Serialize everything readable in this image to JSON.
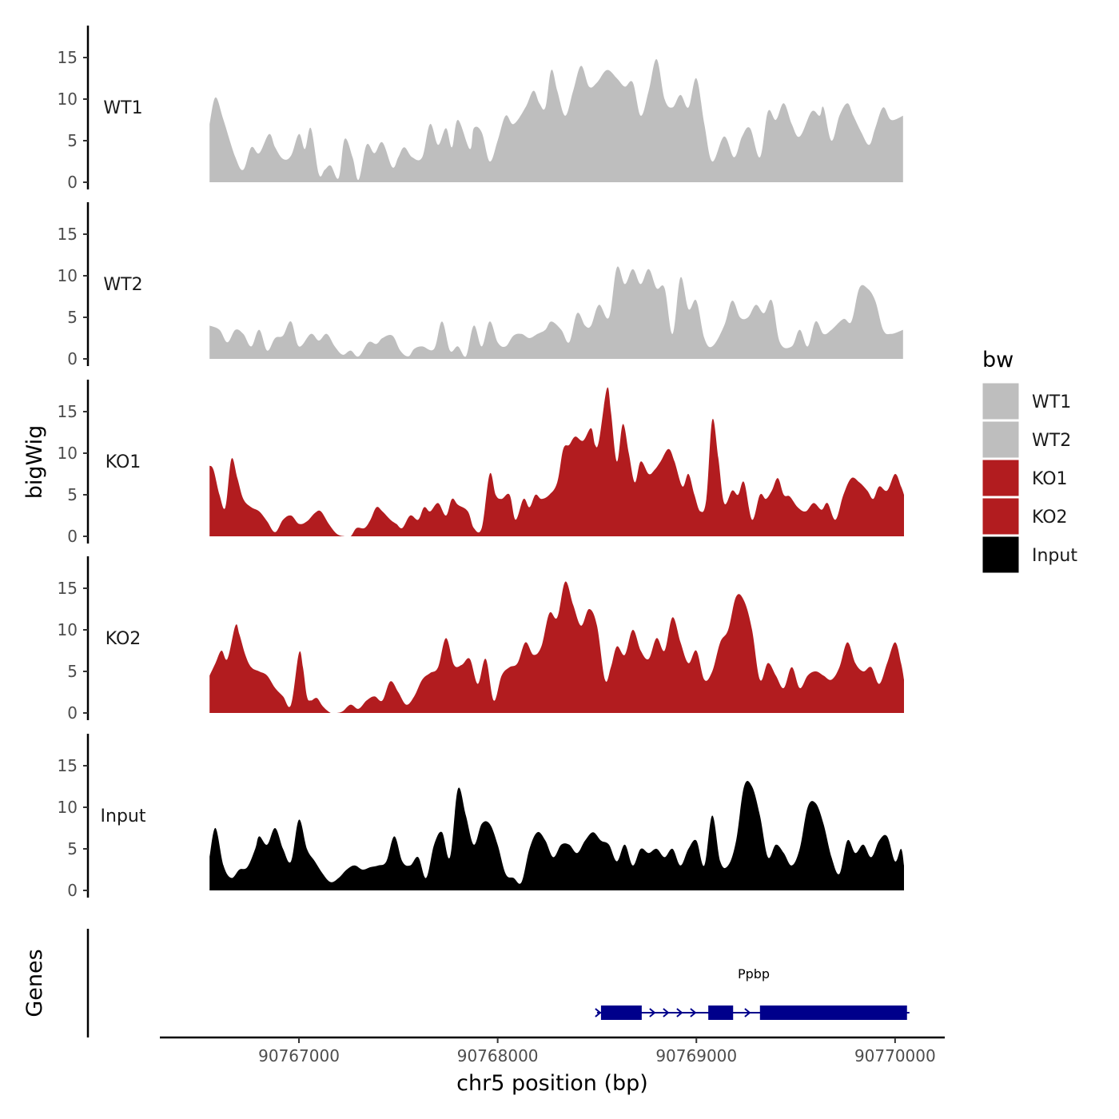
{
  "chart_data": {
    "type": "area",
    "title": "",
    "ylabel": "bigWig",
    "genes_label": "Genes",
    "xlabel": "chr5 position (bp)",
    "xlim": [
      90766300,
      90770250
    ],
    "ylim": [
      0,
      18
    ],
    "yticks": [
      "0",
      "5",
      "10",
      "15"
    ],
    "xticks": [
      {
        "value": 90767000,
        "label": "90767000"
      },
      {
        "value": 90768000,
        "label": "90768000"
      },
      {
        "value": 90769000,
        "label": "90769000"
      },
      {
        "value": 90770000,
        "label": "90770000"
      }
    ],
    "grid": false,
    "legend": {
      "title": "bw",
      "position": "right"
    },
    "series": [
      {
        "name": "WT1",
        "color": "#BEBEBE",
        "x": [
          90766550,
          90766580,
          90766620,
          90766680,
          90766720,
          90766760,
          90766800,
          90766850,
          90766880,
          90766920,
          90766960,
          90767000,
          90767030,
          90767060,
          90767100,
          90767130,
          90767160,
          90767200,
          90767230,
          90767270,
          90767300,
          90767340,
          90767380,
          90767420,
          90767470,
          90767500,
          90767530,
          90767570,
          90767620,
          90767660,
          90767700,
          90767740,
          90767770,
          90767800,
          90767860,
          90767880,
          90767920,
          90767960,
          90768000,
          90768040,
          90768080,
          90768140,
          90768180,
          90768210,
          90768240,
          90768270,
          90768300,
          90768340,
          90768380,
          90768420,
          90768460,
          90768500,
          90768550,
          90768600,
          90768640,
          90768680,
          90768720,
          90768760,
          90768800,
          90768840,
          90768880,
          90768920,
          90768960,
          90769000,
          90769040,
          90769080,
          90769140,
          90769190,
          90769230,
          90769270,
          90769320,
          90769360,
          90769400,
          90769440,
          90769480,
          90769520,
          90769580,
          90769620,
          90769640,
          90769680,
          90769720,
          90769760,
          90769790,
          90769830,
          90769870,
          90769900,
          90769940,
          90769980,
          90770040
        ],
        "values": [
          7.0,
          10.2,
          7.5,
          3.0,
          1.5,
          4.2,
          3.5,
          5.8,
          4.2,
          2.8,
          3.2,
          5.8,
          4.0,
          6.5,
          1.0,
          1.5,
          2.0,
          0.5,
          5.2,
          3.0,
          0.3,
          4.5,
          3.5,
          4.8,
          1.8,
          3.0,
          4.2,
          3.0,
          3.0,
          7.0,
          4.5,
          6.5,
          4.2,
          7.5,
          4.0,
          6.5,
          6.0,
          2.5,
          5.0,
          8.0,
          7.0,
          9.0,
          11.0,
          9.5,
          9.0,
          13.5,
          11.0,
          8.0,
          11.0,
          14.0,
          11.5,
          12.0,
          13.5,
          12.5,
          11.5,
          12.0,
          8.0,
          11.0,
          14.8,
          10.0,
          9.0,
          10.5,
          9.0,
          12.5,
          7.0,
          2.5,
          5.5,
          3.0,
          5.5,
          6.5,
          3.0,
          8.5,
          7.5,
          9.5,
          7.0,
          5.5,
          8.5,
          8.0,
          9.0,
          5.0,
          8.0,
          9.5,
          8.0,
          6.0,
          4.5,
          6.5,
          9.0,
          7.5,
          8.0
        ]
      },
      {
        "name": "WT2",
        "color": "#BEBEBE",
        "x": [
          90766550,
          90766600,
          90766640,
          90766680,
          90766720,
          90766760,
          90766800,
          90766840,
          90766880,
          90766920,
          90766960,
          90767000,
          90767060,
          90767100,
          90767140,
          90767180,
          90767220,
          90767260,
          90767300,
          90767350,
          90767390,
          90767420,
          90767470,
          90767510,
          90767550,
          90767580,
          90767620,
          90767680,
          90767720,
          90767760,
          90767800,
          90767840,
          90767880,
          90767920,
          90767960,
          90768000,
          90768040,
          90768080,
          90768120,
          90768160,
          90768200,
          90768240,
          90768270,
          90768320,
          90768360,
          90768400,
          90768440,
          90768470,
          90768510,
          90768560,
          90768600,
          90768640,
          90768680,
          90768720,
          90768760,
          90768800,
          90768840,
          90768880,
          90768920,
          90768960,
          90769000,
          90769040,
          90769080,
          90769140,
          90769180,
          90769220,
          90769260,
          90769300,
          90769340,
          90769380,
          90769420,
          90769480,
          90769520,
          90769560,
          90769600,
          90769640,
          90769680,
          90769740,
          90769780,
          90769820,
          90769860,
          90769900,
          90769940,
          90769980,
          90770040
        ],
        "values": [
          4.0,
          3.5,
          2.0,
          3.5,
          3.0,
          1.5,
          3.5,
          1.0,
          2.5,
          2.8,
          4.5,
          1.5,
          3.0,
          2.2,
          3.0,
          1.5,
          0.5,
          1.0,
          0.3,
          2.0,
          1.8,
          2.5,
          2.8,
          1.0,
          0.3,
          1.2,
          1.5,
          1.2,
          4.5,
          1.0,
          1.5,
          0.3,
          4.0,
          1.5,
          4.5,
          2.0,
          1.5,
          2.8,
          3.0,
          2.5,
          3.0,
          3.5,
          4.5,
          3.5,
          2.0,
          5.5,
          4.0,
          4.0,
          6.5,
          5.0,
          11.0,
          9.0,
          10.8,
          9.0,
          10.8,
          8.5,
          8.5,
          3.0,
          9.8,
          6.0,
          7.0,
          2.5,
          1.5,
          4.0,
          7.0,
          5.0,
          5.0,
          6.5,
          5.5,
          7.0,
          2.0,
          1.5,
          3.5,
          1.5,
          4.5,
          3.0,
          3.5,
          4.8,
          4.5,
          8.5,
          8.5,
          7.0,
          3.5,
          3.0,
          3.5
        ]
      },
      {
        "name": "KO1",
        "color": "#B21C1F",
        "x": [
          90766550,
          90766570,
          90766600,
          90766630,
          90766660,
          90766690,
          90766720,
          90766760,
          90766800,
          90766840,
          90766880,
          90766920,
          90766960,
          90767000,
          90767040,
          90767080,
          90767110,
          90767150,
          90767190,
          90767230,
          90767260,
          90767290,
          90767330,
          90767360,
          90767390,
          90767420,
          90767460,
          90767490,
          90767520,
          90767560,
          90767600,
          90767630,
          90767660,
          90767700,
          90767740,
          90767770,
          90767800,
          90767850,
          90767880,
          90767920,
          90767960,
          90767990,
          90768020,
          90768060,
          90768090,
          90768130,
          90768160,
          90768190,
          90768220,
          90768260,
          90768300,
          90768330,
          90768360,
          90768390,
          90768430,
          90768470,
          90768490,
          90768510,
          90768550,
          90768570,
          90768600,
          90768630,
          90768660,
          90768690,
          90768720,
          90768760,
          90768790,
          90768820,
          90768860,
          90768890,
          90768930,
          90768960,
          90768990,
          90769020,
          90769050,
          90769080,
          90769110,
          90769140,
          90769180,
          90769210,
          90769240,
          90769280,
          90769320,
          90769350,
          90769380,
          90769410,
          90769440,
          90769470,
          90769510,
          90769550,
          90769590,
          90769630,
          90769660,
          90769700,
          90769740,
          90769780,
          90769820,
          90769860,
          90769890,
          90769920,
          90769960,
          90770000,
          90770030,
          90770045
        ],
        "values": [
          8.5,
          8.0,
          5.0,
          3.5,
          9.3,
          7.0,
          4.5,
          3.5,
          3.0,
          1.8,
          0.5,
          2.0,
          2.5,
          1.5,
          1.8,
          2.8,
          3.0,
          1.5,
          0.3,
          0.0,
          0.0,
          1.0,
          1.0,
          2.0,
          3.5,
          3.0,
          2.0,
          1.5,
          1.0,
          2.5,
          2.0,
          3.5,
          3.0,
          4.0,
          2.5,
          4.5,
          3.8,
          3.0,
          1.0,
          1.0,
          7.5,
          5.0,
          4.5,
          5.0,
          2.0,
          4.5,
          3.5,
          5.0,
          4.5,
          5.0,
          6.5,
          10.5,
          11.0,
          12.0,
          11.5,
          13.0,
          11.0,
          11.5,
          17.8,
          15.0,
          9.0,
          13.5,
          10.0,
          6.5,
          9.0,
          7.5,
          8.0,
          9.0,
          10.5,
          9.0,
          6.0,
          7.5,
          5.0,
          3.0,
          4.5,
          14.0,
          9.5,
          4.0,
          5.5,
          5.0,
          6.5,
          2.0,
          5.0,
          4.5,
          5.5,
          7.0,
          5.0,
          4.8,
          3.5,
          3.0,
          4.0,
          3.2,
          4.0,
          2.0,
          5.0,
          7.0,
          6.5,
          5.5,
          4.5,
          6.0,
          5.5,
          7.5,
          6.0,
          5.0
        ]
      },
      {
        "name": "KO2",
        "color": "#B21C1F",
        "x": [
          90766550,
          90766580,
          90766610,
          90766640,
          90766680,
          90766700,
          90766730,
          90766760,
          90766800,
          90766840,
          90766880,
          90766920,
          90766960,
          90767000,
          90767020,
          90767040,
          90767060,
          90767090,
          90767120,
          90767160,
          90767190,
          90767220,
          90767260,
          90767300,
          90767340,
          90767380,
          90767420,
          90767460,
          90767500,
          90767540,
          90767580,
          90767620,
          90767660,
          90767700,
          90767740,
          90767780,
          90767820,
          90767860,
          90767900,
          90767940,
          90767980,
          90768020,
          90768060,
          90768100,
          90768140,
          90768180,
          90768220,
          90768260,
          90768300,
          90768340,
          90768380,
          90768420,
          90768460,
          90768500,
          90768540,
          90768570,
          90768600,
          90768640,
          90768680,
          90768720,
          90768760,
          90768800,
          90768840,
          90768880,
          90768920,
          90768960,
          90769000,
          90769040,
          90769080,
          90769120,
          90769160,
          90769200,
          90769240,
          90769280,
          90769320,
          90769360,
          90769400,
          90769440,
          90769480,
          90769520,
          90769560,
          90769600,
          90769640,
          90769680,
          90769720,
          90769760,
          90769800,
          90769840,
          90769880,
          90769920,
          90769960,
          90770000,
          90770030,
          90770045
        ],
        "values": [
          4.5,
          6.0,
          7.5,
          6.5,
          10.5,
          9.5,
          7.0,
          5.5,
          5.0,
          4.5,
          3.0,
          2.0,
          1.0,
          7.2,
          5.5,
          2.0,
          1.5,
          1.8,
          0.8,
          0.0,
          0.0,
          0.2,
          1.0,
          0.5,
          1.5,
          2.0,
          1.5,
          3.8,
          2.5,
          1.0,
          2.0,
          4.0,
          4.8,
          5.5,
          9.0,
          5.8,
          5.8,
          6.5,
          3.5,
          6.5,
          1.5,
          4.5,
          5.5,
          6.0,
          8.5,
          7.0,
          8.0,
          12.0,
          11.5,
          15.8,
          13.0,
          10.5,
          12.5,
          10.5,
          4.0,
          5.5,
          8.0,
          7.0,
          10.0,
          7.5,
          6.5,
          9.0,
          7.5,
          11.5,
          8.5,
          6.0,
          7.5,
          4.0,
          5.0,
          8.5,
          10.0,
          14.0,
          13.5,
          10.0,
          4.0,
          6.0,
          4.5,
          3.0,
          5.5,
          3.0,
          4.5,
          5.0,
          4.5,
          4.0,
          5.5,
          8.5,
          6.0,
          5.0,
          5.5,
          3.5,
          6.0,
          8.5,
          6.0,
          4.0
        ]
      },
      {
        "name": "Input",
        "color": "#000000",
        "x": [
          90766550,
          90766580,
          90766620,
          90766660,
          90766700,
          90766740,
          90766780,
          90766800,
          90766840,
          90766880,
          90766920,
          90766960,
          90767000,
          90767040,
          90767080,
          90767120,
          90767160,
          90767200,
          90767240,
          90767280,
          90767320,
          90767360,
          90767400,
          90767440,
          90767480,
          90767520,
          90767560,
          90767600,
          90767640,
          90767680,
          90767720,
          90767760,
          90767800,
          90767840,
          90767880,
          90767920,
          90767960,
          90768000,
          90768040,
          90768080,
          90768120,
          90768160,
          90768200,
          90768240,
          90768280,
          90768320,
          90768360,
          90768400,
          90768440,
          90768480,
          90768520,
          90768560,
          90768600,
          90768640,
          90768680,
          90768720,
          90768760,
          90768800,
          90768840,
          90768880,
          90768920,
          90768960,
          90769000,
          90769040,
          90769080,
          90769120,
          90769160,
          90769200,
          90769240,
          90769280,
          90769320,
          90769360,
          90769400,
          90769440,
          90769480,
          90769520,
          90769560,
          90769600,
          90769640,
          90769680,
          90769720,
          90769760,
          90769800,
          90769840,
          90769880,
          90769920,
          90769960,
          90770000,
          90770030,
          90770045
        ],
        "values": [
          4.0,
          7.5,
          3.0,
          1.5,
          2.5,
          2.8,
          5.0,
          6.5,
          5.5,
          7.5,
          5.0,
          3.5,
          8.5,
          5.0,
          3.5,
          2.0,
          1.0,
          1.5,
          2.5,
          3.0,
          2.5,
          2.8,
          3.0,
          3.5,
          6.5,
          3.5,
          3.0,
          4.0,
          1.5,
          5.5,
          7.0,
          4.0,
          12.2,
          9.0,
          5.5,
          8.0,
          8.0,
          5.5,
          2.0,
          1.5,
          1.0,
          5.0,
          7.0,
          6.0,
          4.0,
          5.5,
          5.5,
          4.5,
          6.0,
          7.0,
          6.0,
          5.5,
          3.5,
          5.5,
          3.0,
          5.0,
          4.5,
          5.0,
          4.0,
          5.0,
          3.0,
          5.0,
          6.0,
          3.0,
          9.0,
          3.5,
          3.0,
          6.0,
          12.5,
          12.5,
          9.0,
          4.0,
          5.5,
          4.5,
          3.0,
          5.0,
          10.0,
          10.5,
          8.0,
          4.0,
          2.0,
          6.0,
          4.5,
          5.5,
          4.0,
          6.0,
          6.5,
          3.5,
          5.0,
          3.0
        ]
      }
    ],
    "genes": [
      {
        "name": "Ppbp",
        "start": 90768520,
        "end": 90770060,
        "strand": "+",
        "color": "#00008B",
        "exons": [
          [
            90768520,
            90768725
          ],
          [
            90769060,
            90769185
          ],
          [
            90769320,
            90770060
          ]
        ]
      }
    ]
  }
}
